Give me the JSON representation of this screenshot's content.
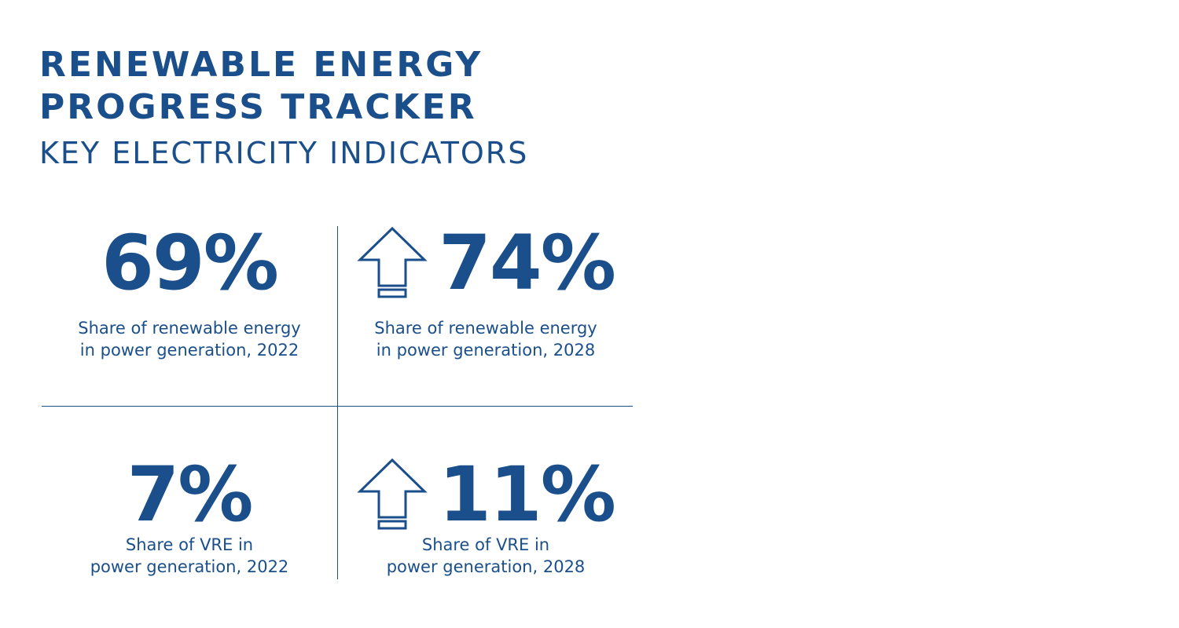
{
  "header": {
    "title_line1": "RENEWABLE ENERGY",
    "title_line2": "PROGRESS TRACKER",
    "subtitle": "KEY ELECTRICITY INDICATORS"
  },
  "colors": {
    "primary": "#1a4f8b",
    "background": "#ffffff"
  },
  "indicators": [
    {
      "value": "69%",
      "label_line1": "Share of renewable energy",
      "label_line2": "in power generation, 2022",
      "icon": null
    },
    {
      "value": "74%",
      "label_line1": "Share of renewable energy",
      "label_line2": "in power generation, 2028",
      "icon": "up-arrow-icon"
    },
    {
      "value": "7%",
      "label_line1": "Share of VRE in",
      "label_line2": "power generation, 2022",
      "icon": null
    },
    {
      "value": "11%",
      "label_line1": "Share of VRE in",
      "label_line2": "power generation, 2028",
      "icon": "up-arrow-icon"
    }
  ]
}
